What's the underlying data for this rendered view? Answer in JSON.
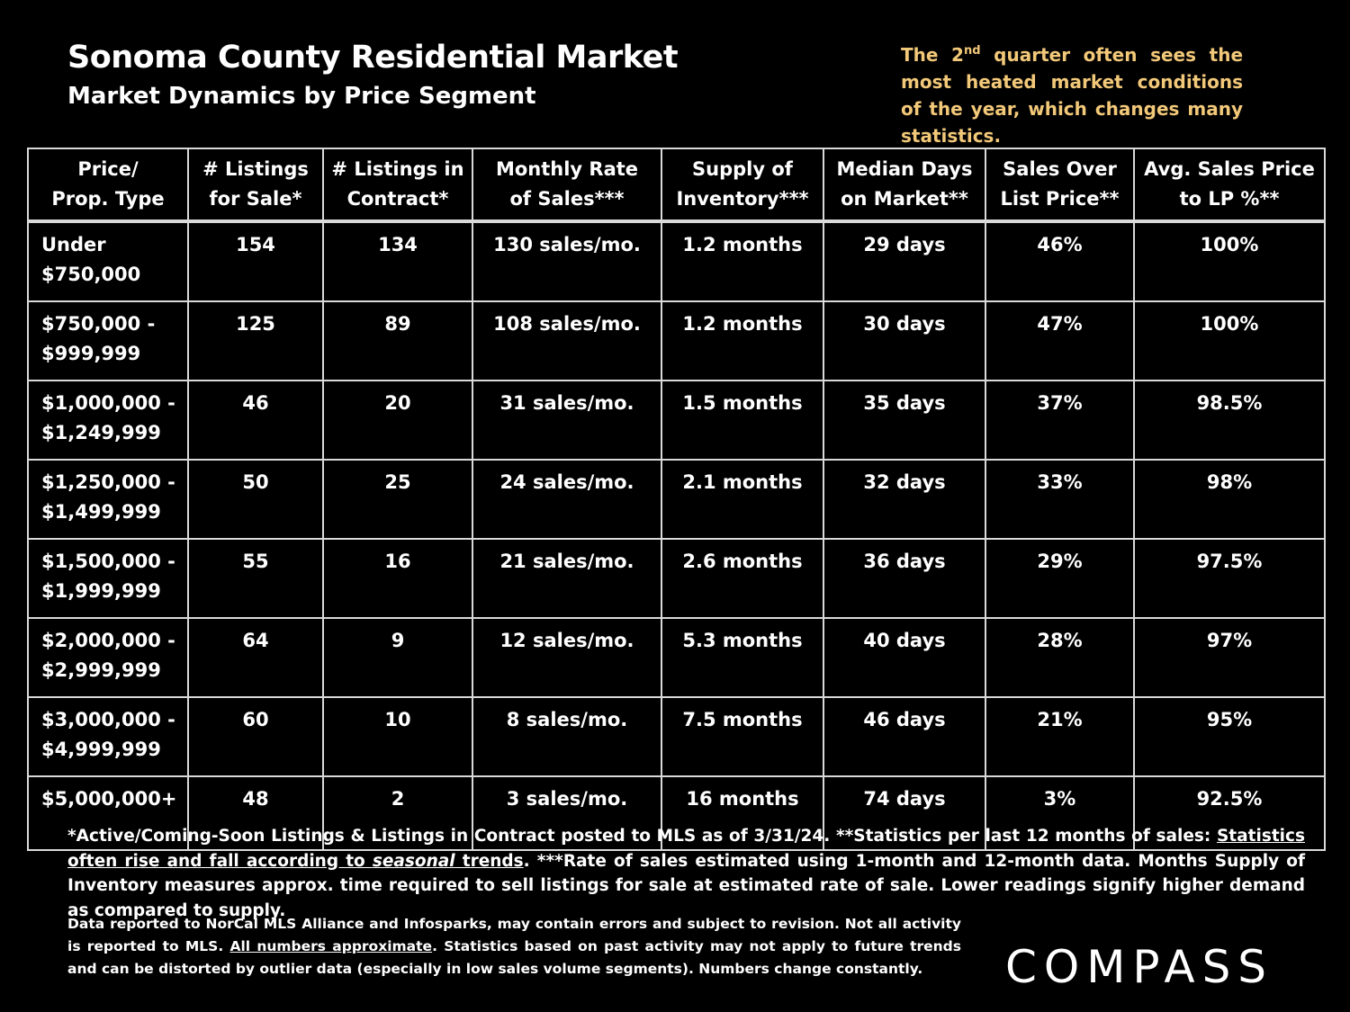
{
  "header": {
    "title": "Sonoma County Residential Market",
    "subtitle": "Market Dynamics by Price Segment"
  },
  "note": {
    "pre": "The 2",
    "sup": "nd",
    "post": " quarter often sees the most heated market conditions of the year, which changes many statistics."
  },
  "table": {
    "headers": [
      [
        "Price/",
        "Prop. Type"
      ],
      [
        "# Listings",
        "for Sale*"
      ],
      [
        "# Listings in",
        "Contract*"
      ],
      [
        "Monthly Rate",
        "of Sales***"
      ],
      [
        "Supply of",
        "Inventory***"
      ],
      [
        "Median Days",
        "on Market**"
      ],
      [
        "Sales Over",
        "List Price**"
      ],
      [
        "Avg. Sales Price",
        "to LP %**"
      ]
    ],
    "rows": [
      {
        "label": [
          "Under",
          "$750,000"
        ],
        "cells": [
          "154",
          "134",
          "130 sales/mo.",
          "1.2 months",
          "29 days",
          "46%",
          "100%"
        ]
      },
      {
        "label": [
          "$750,000 -",
          "$999,999"
        ],
        "cells": [
          "125",
          "89",
          "108 sales/mo.",
          "1.2 months",
          "30 days",
          "47%",
          "100%"
        ]
      },
      {
        "label": [
          "$1,000,000 -",
          "$1,249,999"
        ],
        "cells": [
          "46",
          "20",
          "31 sales/mo.",
          "1.5 months",
          "35 days",
          "37%",
          "98.5%"
        ]
      },
      {
        "label": [
          "$1,250,000 -",
          "$1,499,999"
        ],
        "cells": [
          "50",
          "25",
          "24 sales/mo.",
          "2.1 months",
          "32 days",
          "33%",
          "98%"
        ]
      },
      {
        "label": [
          "$1,500,000 -",
          "$1,999,999"
        ],
        "cells": [
          "55",
          "16",
          "21 sales/mo.",
          "2.6 months",
          "36 days",
          "29%",
          "97.5%"
        ]
      },
      {
        "label": [
          "$2,000,000 -",
          "$2,999,999"
        ],
        "cells": [
          "64",
          "9",
          "12 sales/mo.",
          "5.3 months",
          "40 days",
          "28%",
          "97%"
        ]
      },
      {
        "label": [
          "$3,000,000 -",
          "$4,999,999"
        ],
        "cells": [
          "60",
          "10",
          "8 sales/mo.",
          "7.5 months",
          "46 days",
          "21%",
          "95%"
        ]
      },
      {
        "label": [
          "$5,000,000+",
          ""
        ],
        "cells": [
          "48",
          "2",
          "3 sales/mo.",
          "16 months",
          "74 days",
          "3%",
          "92.5%"
        ]
      }
    ]
  },
  "footnote1": {
    "a": "*Active/Coming-Soon Listings & Listings in Contract posted to MLS as of 3/31/24. **Statistics per last 12 months of sales: ",
    "u1": "Statistics often rise and fall according to ",
    "u_em": "seasonal",
    "u2": " trends",
    "b": ".   ***Rate of sales estimated using 1-month and 12-month data. Months Supply of Inventory measures approx. time required to sell listings for sale at estimated rate of sale. Lower readings signify higher demand as compared to supply."
  },
  "footnote2": {
    "a": "Data reported to NorCal MLS Alliance and Infosparks, may contain errors and subject to revision.  Not all activity is reported to MLS. ",
    "u": "All numbers approximate",
    "b": ". Statistics based on past activity may not apply to future trends and can be distorted by outlier data (especially in low sales volume segments). Numbers change constantly."
  },
  "logo": {
    "text": "COMPASS"
  }
}
